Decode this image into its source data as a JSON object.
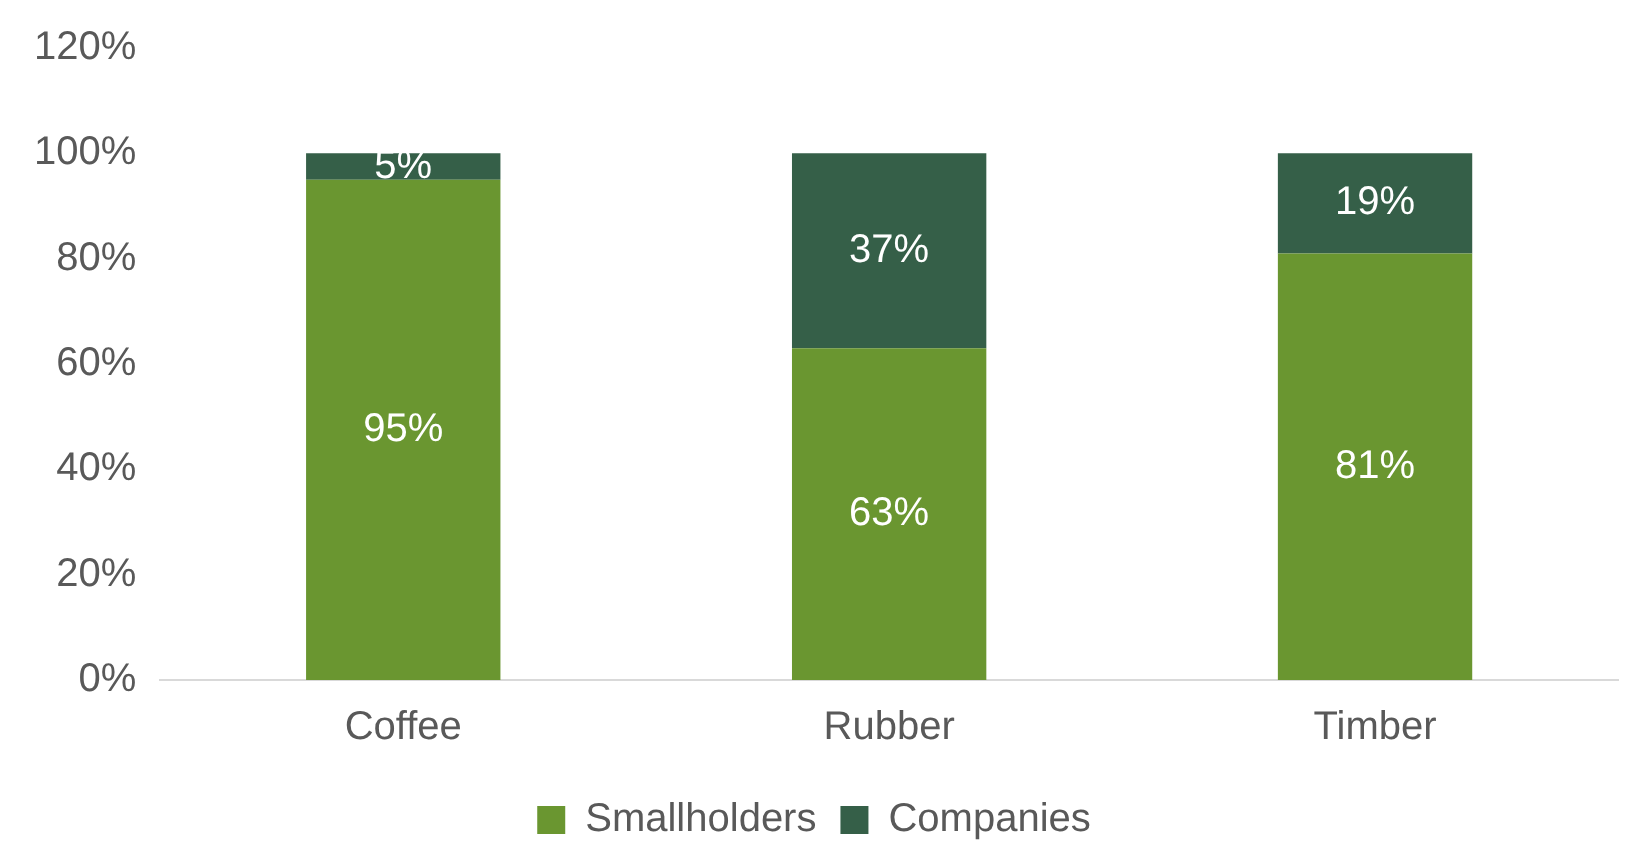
{
  "chart_data": {
    "type": "bar",
    "stacked": true,
    "categories": [
      "Coffee",
      "Rubber",
      "Timber"
    ],
    "series": [
      {
        "name": "Smallholders",
        "color": "#6a9630",
        "values": [
          95,
          63,
          81
        ],
        "value_labels": [
          "95%",
          "63%",
          "81%"
        ]
      },
      {
        "name": "Companies",
        "color": "#355f48",
        "values": [
          5,
          37,
          19
        ],
        "value_labels": [
          "5%",
          "37%",
          "19%"
        ]
      }
    ],
    "ylim": [
      0,
      120
    ],
    "yticks": [
      {
        "value": 0,
        "label": "0%"
      },
      {
        "value": 20,
        "label": "20%"
      },
      {
        "value": 40,
        "label": "40%"
      },
      {
        "value": 60,
        "label": "60%"
      },
      {
        "value": 80,
        "label": "80%"
      },
      {
        "value": 100,
        "label": "100%"
      },
      {
        "value": 120,
        "label": "120%"
      }
    ],
    "grid": false,
    "legend": "bottom"
  }
}
